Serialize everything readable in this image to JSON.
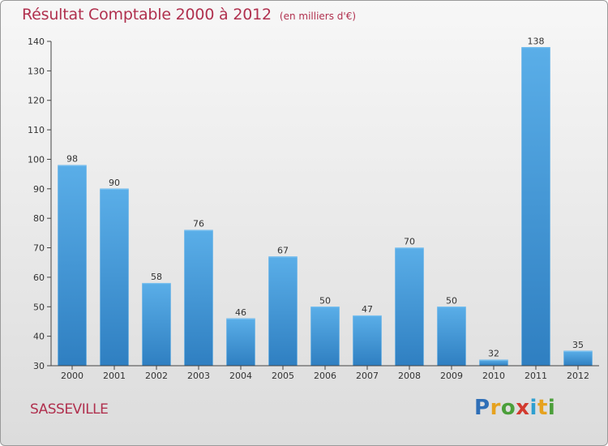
{
  "header": {
    "title": "Résultat Comptable 2000 à 2012",
    "subtitle": "(en milliers d'€)"
  },
  "footer": {
    "location": "SASSEVILLE",
    "logo": {
      "letters": [
        "P",
        "r",
        "o",
        "x",
        "i",
        "t",
        "i"
      ],
      "colors": [
        "#2f6fb7",
        "#e6a21f",
        "#4b9f3a",
        "#d23a2f",
        "#2f9fd0",
        "#e6a21f",
        "#4b9f3a"
      ]
    }
  },
  "colors": {
    "bar": "#5aaee8",
    "bar_dark": "#2f7fc1",
    "axis": "#444444",
    "grid": "#c8c8c8"
  },
  "chart_data": {
    "type": "bar",
    "title": "Résultat Comptable 2000 à 2012",
    "subtitle": "(en milliers d'€)",
    "categories": [
      "2000",
      "2001",
      "2002",
      "2003",
      "2004",
      "2005",
      "2006",
      "2007",
      "2008",
      "2009",
      "2010",
      "2011",
      "2012"
    ],
    "values": [
      98,
      90,
      58,
      76,
      46,
      67,
      50,
      47,
      70,
      50,
      32,
      138,
      35
    ],
    "ylim": [
      30,
      140
    ],
    "yticks": [
      30,
      40,
      50,
      60,
      70,
      80,
      90,
      100,
      110,
      120,
      130,
      140
    ],
    "grid": false,
    "legend": "none"
  }
}
